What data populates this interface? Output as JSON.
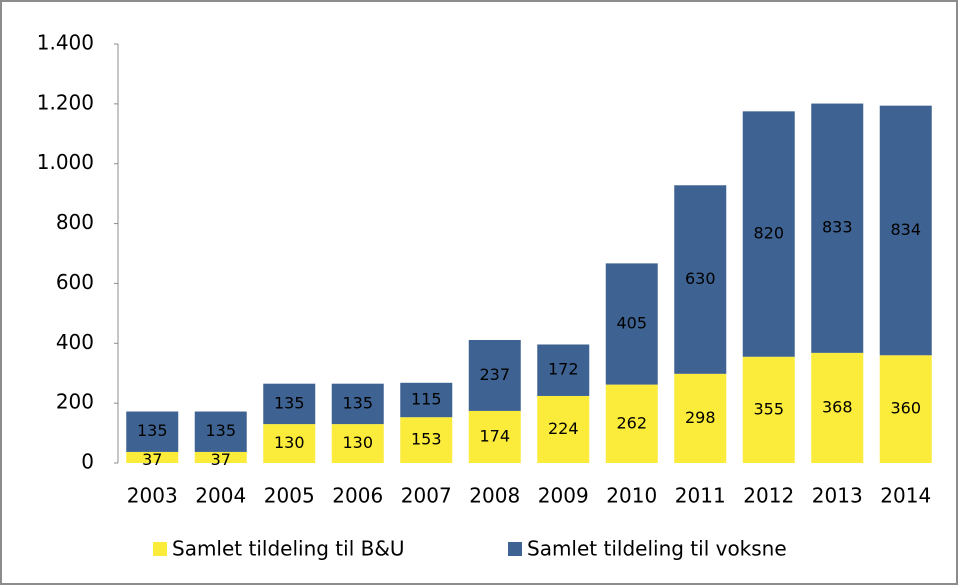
{
  "chart_data": {
    "type": "stacked_bar",
    "categories": [
      "2003",
      "2004",
      "2005",
      "2006",
      "2007",
      "2008",
      "2009",
      "2010",
      "2011",
      "2012",
      "2013",
      "2014"
    ],
    "series": [
      {
        "name": "Samlet tildeling til B&U",
        "color": "#fbeb3a",
        "values": [
          37,
          37,
          130,
          130,
          153,
          174,
          224,
          262,
          298,
          355,
          368,
          360
        ]
      },
      {
        "name": "Samlet tildeling til voksne",
        "color": "#3e6392",
        "values": [
          135,
          135,
          135,
          135,
          115,
          237,
          172,
          405,
          630,
          820,
          833,
          834
        ]
      }
    ],
    "ylim": [
      0,
      1400
    ],
    "yticks": [
      0,
      200,
      400,
      600,
      800,
      {
        "value": 1000,
        "label": "1.000"
      },
      {
        "value": 1200,
        "label": "1.200"
      },
      {
        "value": 1400,
        "label": "1.400"
      }
    ],
    "grid": false
  }
}
